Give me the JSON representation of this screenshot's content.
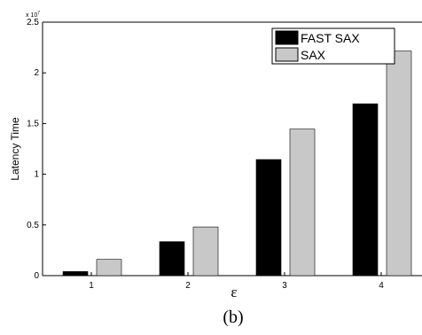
{
  "chart_data": {
    "type": "bar",
    "categories": [
      "1",
      "2",
      "3",
      "4"
    ],
    "series": [
      {
        "name": "FAST SAX",
        "values": [
          400000,
          3350000,
          11450000,
          16950000
        ],
        "color": "#000000"
      },
      {
        "name": "SAX",
        "values": [
          1600000,
          4800000,
          14450000,
          22150000
        ],
        "color": "#c8c8c8"
      }
    ],
    "ylabel": "Latency Time",
    "xlabel": "ε",
    "ylim": [
      0,
      25000000
    ],
    "y_ticks": [
      "0",
      "0.5",
      "1",
      "1.5",
      "2",
      "2.5"
    ],
    "y_tick_values": [
      0,
      5000000,
      10000000,
      15000000,
      20000000,
      25000000
    ],
    "y_multiplier": "x 10",
    "y_multiplier_exponent": "7",
    "legend_position": "top-right",
    "grid": false
  },
  "caption": "(b)"
}
